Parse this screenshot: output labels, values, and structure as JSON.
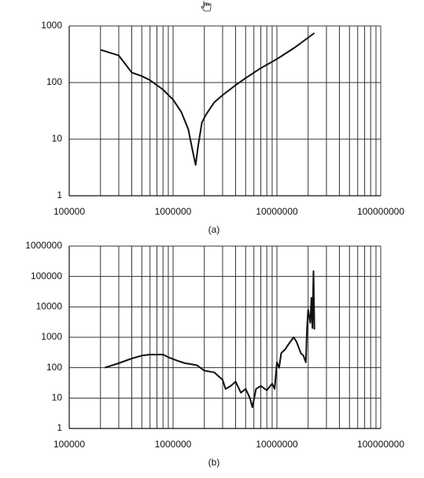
{
  "chart_data": [
    {
      "type": "line",
      "caption": "(a)",
      "log_x": true,
      "log_y": true,
      "grid": true,
      "minor_x_grid": true,
      "xlim": [
        100000,
        100000000
      ],
      "xticks": [
        100000,
        1000000,
        10000000,
        100000000
      ],
      "ylim": [
        1,
        1000
      ],
      "yticks": [
        1,
        10,
        100,
        1000
      ],
      "series": [
        {
          "color": "#111111",
          "x": [
            200000,
            300000,
            400000,
            500000,
            600000,
            800000,
            1000000,
            1200000,
            1400000,
            1550000,
            1650000,
            1750000,
            1900000,
            2100000,
            2500000,
            3000000,
            4000000,
            5000000,
            7000000,
            10000000,
            15000000,
            23000000
          ],
          "values": [
            380,
            300,
            150,
            130,
            110,
            75,
            50,
            30,
            15,
            6,
            3.5,
            8,
            20,
            28,
            45,
            60,
            90,
            120,
            180,
            260,
            420,
            750
          ]
        }
      ]
    },
    {
      "type": "line",
      "caption": "(b)",
      "log_x": true,
      "log_y": true,
      "grid": true,
      "minor_x_grid": true,
      "xlim": [
        100000,
        100000000
      ],
      "xticks": [
        100000,
        1000000,
        10000000,
        100000000
      ],
      "ylim": [
        1,
        1000000
      ],
      "yticks": [
        1,
        10,
        100,
        1000,
        10000,
        100000,
        1000000
      ],
      "series": [
        {
          "color": "#111111",
          "x": [
            220000,
            300000,
            400000,
            500000,
            600000,
            800000,
            900000,
            1100000,
            1300000,
            1500000,
            1700000,
            2000000,
            2500000,
            3000000,
            3200000,
            3600000,
            4000000,
            4500000,
            5000000,
            5500000,
            5800000,
            6300000,
            7000000,
            8000000,
            9000000,
            9500000,
            10000000,
            10500000,
            11000000,
            12000000,
            13000000,
            14500000,
            15500000,
            17000000,
            18000000,
            19000000,
            19500000,
            20000000,
            21000000,
            21500000,
            22000000,
            22500000,
            23000000
          ],
          "values": [
            100,
            140,
            200,
            250,
            270,
            270,
            220,
            170,
            140,
            130,
            120,
            80,
            70,
            40,
            20,
            25,
            35,
            15,
            20,
            10,
            5,
            20,
            25,
            18,
            30,
            20,
            150,
            100,
            300,
            400,
            600,
            1000,
            700,
            300,
            250,
            150,
            2000,
            8000,
            3000,
            20000,
            2000,
            150000,
            1800
          ]
        }
      ]
    }
  ]
}
